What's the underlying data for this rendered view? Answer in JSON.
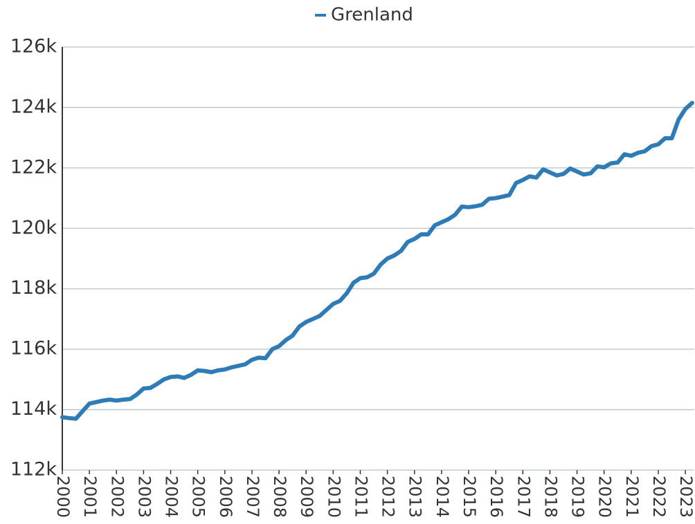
{
  "chart_data": {
    "type": "line",
    "x": [
      2000,
      2000.25,
      2000.5,
      2000.75,
      2001,
      2001.25,
      2001.5,
      2001.75,
      2002,
      2002.25,
      2002.5,
      2002.75,
      2003,
      2003.25,
      2003.5,
      2003.75,
      2004,
      2004.25,
      2004.5,
      2004.75,
      2005,
      2005.25,
      2005.5,
      2005.75,
      2006,
      2006.25,
      2006.5,
      2006.75,
      2007,
      2007.25,
      2007.5,
      2007.75,
      2008,
      2008.25,
      2008.5,
      2008.75,
      2009,
      2009.25,
      2009.5,
      2009.75,
      2010,
      2010.25,
      2010.5,
      2010.75,
      2011,
      2011.25,
      2011.5,
      2011.75,
      2012,
      2012.25,
      2012.5,
      2012.75,
      2013,
      2013.25,
      2013.5,
      2013.75,
      2014,
      2014.25,
      2014.5,
      2014.75,
      2015,
      2015.25,
      2015.5,
      2015.75,
      2016,
      2016.25,
      2016.5,
      2016.75,
      2017,
      2017.25,
      2017.5,
      2017.75,
      2018,
      2018.25,
      2018.5,
      2018.75,
      2019,
      2019.25,
      2019.5,
      2019.75,
      2020,
      2020.25,
      2020.5,
      2020.75,
      2021,
      2021.25,
      2021.5,
      2021.75,
      2022,
      2022.25,
      2022.5,
      2022.75,
      2023,
      2023.25
    ],
    "series": [
      {
        "name": "Grenland",
        "color": "#2f7bb5",
        "values": [
          113750,
          113720,
          113700,
          113950,
          114200,
          114250,
          114300,
          114330,
          114300,
          114330,
          114350,
          114500,
          114700,
          114720,
          114850,
          115000,
          115080,
          115100,
          115050,
          115150,
          115300,
          115280,
          115240,
          115300,
          115330,
          115400,
          115450,
          115500,
          115650,
          115720,
          115700,
          116000,
          116100,
          116300,
          116450,
          116750,
          116900,
          117000,
          117100,
          117300,
          117500,
          117600,
          117850,
          118200,
          118350,
          118380,
          118500,
          118800,
          119000,
          119100,
          119250,
          119550,
          119650,
          119800,
          119800,
          120100,
          120200,
          120300,
          120450,
          120720,
          120700,
          120730,
          120780,
          120980,
          121000,
          121050,
          121100,
          121500,
          121600,
          121720,
          121680,
          121950,
          121850,
          121750,
          121800,
          121980,
          121880,
          121780,
          121820,
          122050,
          122020,
          122150,
          122180,
          122450,
          122400,
          122500,
          122550,
          122720,
          122780,
          122980,
          122980,
          123600,
          123950,
          124150
        ]
      }
    ],
    "xlim": [
      2000,
      2023.33
    ],
    "xticks": [
      2000,
      2001,
      2002,
      2003,
      2004,
      2005,
      2006,
      2007,
      2008,
      2009,
      2010,
      2011,
      2012,
      2013,
      2014,
      2015,
      2016,
      2017,
      2018,
      2019,
      2020,
      2021,
      2022,
      2023
    ],
    "ylim": [
      112000,
      126000
    ],
    "yticks": [
      {
        "value": 112000,
        "label": "112k"
      },
      {
        "value": 114000,
        "label": "114k"
      },
      {
        "value": 116000,
        "label": "116k"
      },
      {
        "value": 118000,
        "label": "118k"
      },
      {
        "value": 120000,
        "label": "120k"
      },
      {
        "value": 122000,
        "label": "122k"
      },
      {
        "value": 124000,
        "label": "124k"
      },
      {
        "value": 126000,
        "label": "126k"
      }
    ],
    "grid": true,
    "legend": "top"
  }
}
